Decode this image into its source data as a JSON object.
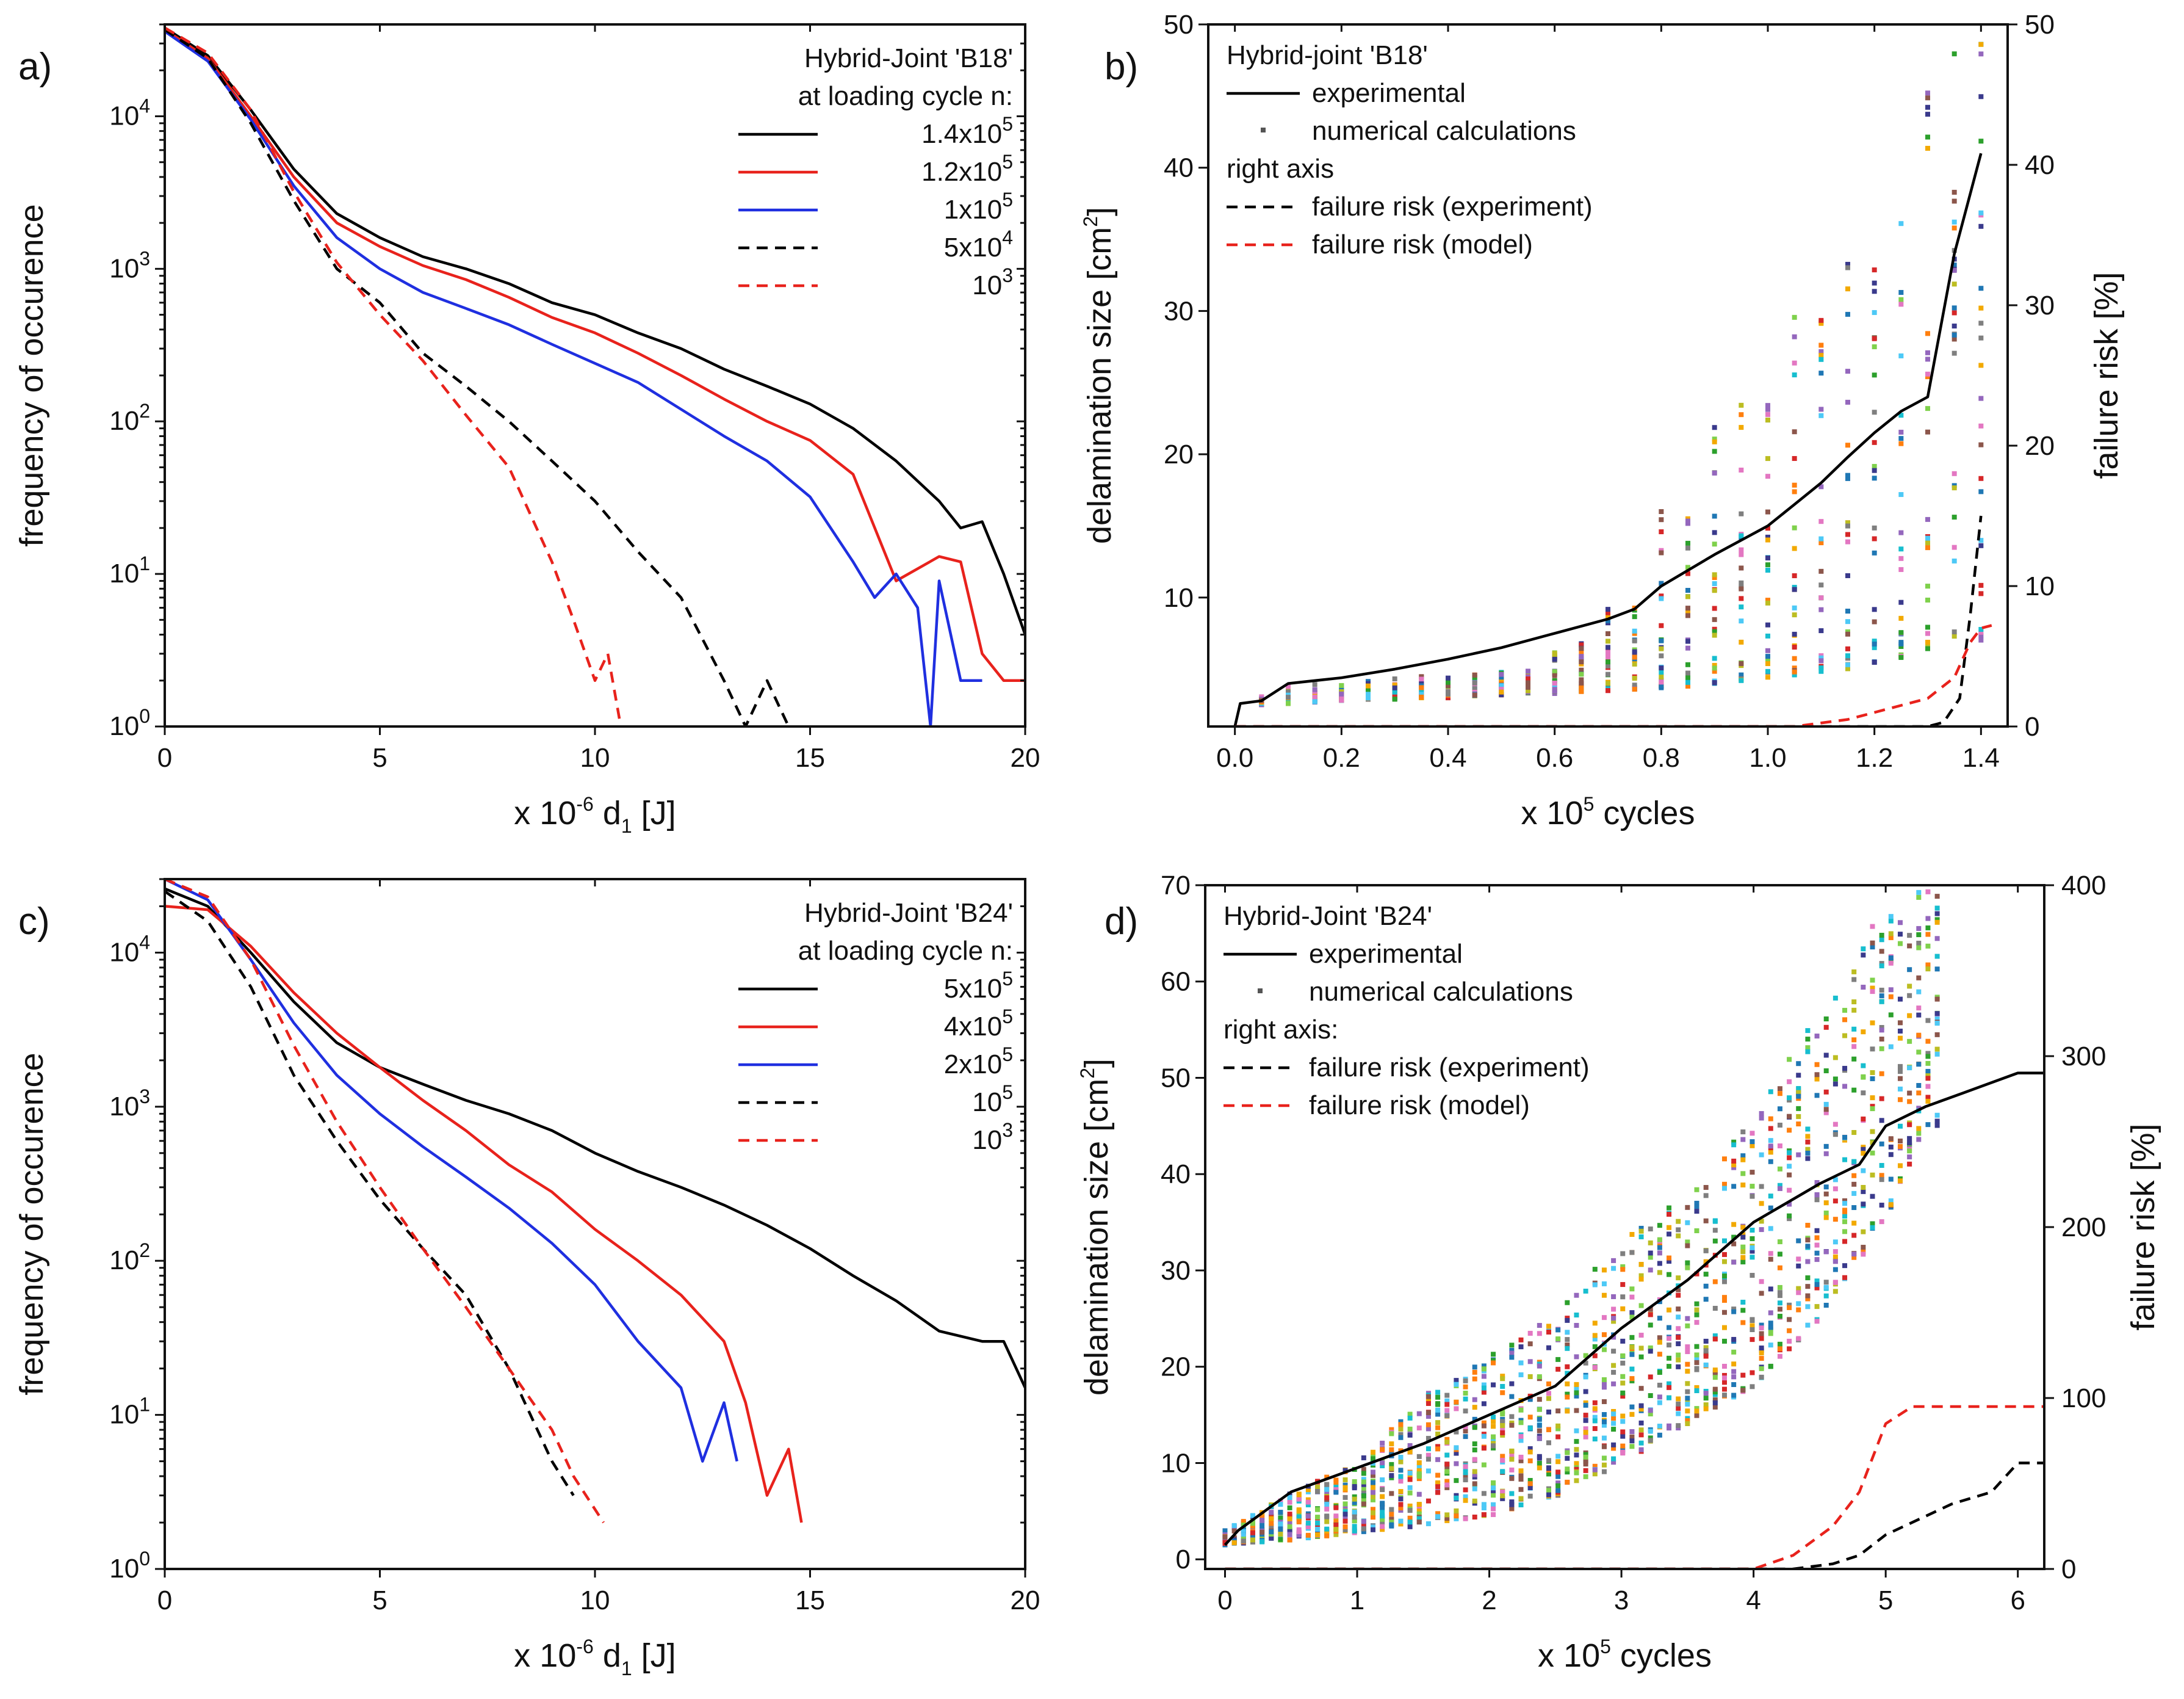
{
  "chart_data": [
    {
      "panel": "a)",
      "type": "line",
      "yscale": "log",
      "xlabel": "x 10-6 d1 [J]",
      "xlabel_parts": {
        "prefix": "x 10",
        "exp": "-6",
        "var": " d",
        "sub": "1",
        "unit": "[J]"
      },
      "ylabel": "frequency of occurence",
      "xlim": [
        0,
        20
      ],
      "ylim": [
        1,
        40000
      ],
      "xticks": [
        "0",
        "5",
        "10",
        "15",
        "20"
      ],
      "yticks": [
        {
          "base": "10",
          "exp": "0"
        },
        {
          "base": "10",
          "exp": "1"
        },
        {
          "base": "10",
          "exp": "2"
        },
        {
          "base": "10",
          "exp": "3"
        },
        {
          "base": "10",
          "exp": "4"
        }
      ],
      "legend_title": [
        "Hybrid-Joint 'B18'",
        "at loading cycle n:"
      ],
      "series": [
        {
          "name": "1.4x10^5",
          "label_base": "1.4x10",
          "label_exp": "5",
          "color": "#000000",
          "dash": "solid",
          "x": [
            0,
            1,
            2,
            3,
            4,
            5,
            6,
            7,
            8,
            9,
            10,
            11,
            12,
            13,
            14,
            15,
            16,
            17,
            18,
            18.5,
            19,
            19.5,
            20
          ],
          "y": [
            38000,
            25000,
            11000,
            4500,
            2300,
            1600,
            1200,
            1000,
            800,
            600,
            500,
            380,
            300,
            220,
            170,
            130,
            90,
            55,
            30,
            20,
            22,
            10,
            4
          ]
        },
        {
          "name": "1.2x10^5",
          "label_base": "1.2x10",
          "label_exp": "5",
          "color": "#e8221c",
          "dash": "solid",
          "x": [
            0,
            1,
            2,
            3,
            4,
            5,
            6,
            7,
            8,
            9,
            10,
            11,
            12,
            13,
            14,
            15,
            16,
            17,
            18,
            18.5,
            19,
            19.5,
            20
          ],
          "y": [
            37000,
            24000,
            10000,
            4000,
            2000,
            1400,
            1050,
            850,
            650,
            480,
            380,
            280,
            200,
            140,
            100,
            75,
            45,
            9,
            13,
            12,
            3,
            2,
            2
          ]
        },
        {
          "name": "1x10^5",
          "label_base": "1x10",
          "label_exp": "5",
          "color": "#1f2fe0",
          "dash": "solid",
          "x": [
            0,
            1,
            2,
            3,
            4,
            5,
            6,
            7,
            8,
            9,
            10,
            11,
            12,
            13,
            14,
            15,
            16,
            16.5,
            17,
            17.5,
            17.8,
            18,
            18.5,
            19
          ],
          "y": [
            36000,
            23000,
            9500,
            3500,
            1600,
            1000,
            700,
            550,
            430,
            320,
            240,
            180,
            120,
            80,
            55,
            32,
            12,
            7,
            10,
            6,
            1,
            9,
            2,
            2
          ]
        },
        {
          "name": "5x10^4",
          "label_base": "5x10",
          "label_exp": "4",
          "color": "#000000",
          "dash": "dashed",
          "x": [
            0,
            1,
            2,
            3,
            4,
            5,
            6,
            7,
            8,
            9,
            10,
            11,
            12,
            13,
            13.5,
            14,
            14.5
          ],
          "y": [
            37000,
            24000,
            9000,
            2800,
            1000,
            600,
            280,
            170,
            100,
            55,
            30,
            14,
            7,
            2,
            1,
            2,
            1
          ]
        },
        {
          "name": "10^3",
          "label_base": "10",
          "label_exp": "3",
          "color": "#e8221c",
          "dash": "dashed",
          "x": [
            0,
            1,
            2,
            3,
            4,
            5,
            6,
            7,
            8,
            9,
            9.5,
            10,
            10.3,
            10.6
          ],
          "y": [
            38000,
            26000,
            11000,
            3200,
            1100,
            500,
            250,
            110,
            50,
            12,
            5,
            2,
            3,
            1
          ]
        }
      ]
    },
    {
      "panel": "b)",
      "type": "line+scatter",
      "xlabel": "x 10^5 cycles",
      "xlabel_parts": {
        "prefix": "x 10",
        "exp": "5",
        "rest": " cycles"
      },
      "ylabel": "delamination size [cm2]",
      "ylabel_parts": {
        "prefix": "delamination size [cm",
        "exp": "2",
        "suffix": "]"
      },
      "y2label": "failure risk [%]",
      "xlim": [
        -0.05,
        1.45
      ],
      "ylim": [
        1,
        50
      ],
      "y2lim": [
        0,
        50
      ],
      "xticks": [
        "0.0",
        "0.2",
        "0.4",
        "0.6",
        "0.8",
        "1.0",
        "1.2",
        "1.4"
      ],
      "yticks": [
        "10",
        "20",
        "30",
        "40",
        "50"
      ],
      "y2ticks": [
        "0",
        "10",
        "20",
        "30",
        "40",
        "50"
      ],
      "legend": [
        "Hybrid-joint 'B18'",
        "experimental",
        "numerical calculations",
        "right axis",
        "failure risk (experiment)",
        "failure risk (model)"
      ],
      "experimental": {
        "x": [
          0,
          0.01,
          0.05,
          0.1,
          0.2,
          0.3,
          0.4,
          0.5,
          0.6,
          0.7,
          0.75,
          0.8,
          0.9,
          1.0,
          1.05,
          1.1,
          1.15,
          1.2,
          1.25,
          1.3,
          1.35,
          1.4
        ],
        "y": [
          1,
          2.6,
          2.8,
          4,
          4.4,
          5.0,
          5.7,
          6.5,
          7.5,
          8.5,
          9.2,
          10.8,
          13,
          15,
          16.5,
          18,
          19.8,
          21.5,
          23,
          24,
          34,
          41
        ]
      },
      "scatter_ranges": {
        "x": [
          0.05,
          0.1,
          0.15,
          0.2,
          0.25,
          0.3,
          0.35,
          0.4,
          0.45,
          0.5,
          0.55,
          0.6,
          0.65,
          0.7,
          0.75,
          0.8,
          0.85,
          0.9,
          0.95,
          1.0,
          1.05,
          1.1,
          1.15,
          1.2,
          1.25,
          1.3,
          1.35,
          1.4
        ],
        "ymin": [
          2.5,
          2.6,
          2.7,
          2.8,
          2.9,
          2.9,
          3.0,
          3.0,
          3.1,
          3.2,
          3.3,
          3.3,
          3.4,
          3.5,
          3.6,
          3.7,
          3.8,
          4.0,
          4.2,
          4.4,
          4.6,
          4.8,
          5.0,
          5.4,
          5.8,
          6.0,
          6.5,
          7.0
        ],
        "ymax": [
          3.1,
          3.8,
          4.0,
          4.0,
          4.2,
          4.4,
          4.5,
          4.6,
          4.7,
          4.9,
          5.2,
          6.2,
          7.2,
          9.5,
          10.5,
          16.5,
          17.0,
          22,
          25,
          26,
          31,
          31,
          36,
          37,
          40,
          46,
          48,
          49
        ]
      },
      "risk_experiment": {
        "x": [
          0,
          1.3,
          1.33,
          1.36,
          1.38,
          1.4
        ],
        "y": [
          0,
          0,
          0.3,
          2,
          8,
          15
        ]
      },
      "risk_model": {
        "x": [
          0,
          1.05,
          1.15,
          1.2,
          1.25,
          1.3,
          1.35,
          1.38,
          1.4,
          1.42
        ],
        "y": [
          0,
          0,
          0.5,
          1,
          1.5,
          2,
          3.5,
          6,
          7,
          7.2
        ]
      }
    },
    {
      "panel": "c)",
      "type": "line",
      "yscale": "log",
      "xlabel": "x 10-6 d1 [J]",
      "xlabel_parts": {
        "prefix": "x 10",
        "exp": "-6",
        "var": " d",
        "sub": "1",
        "unit": "[J]"
      },
      "ylabel": "frequency of occurence",
      "xlim": [
        0,
        20
      ],
      "ylim": [
        1,
        30000
      ],
      "xticks": [
        "0",
        "5",
        "10",
        "15",
        "20"
      ],
      "yticks": [
        {
          "base": "10",
          "exp": "0"
        },
        {
          "base": "10",
          "exp": "1"
        },
        {
          "base": "10",
          "exp": "2"
        },
        {
          "base": "10",
          "exp": "3"
        },
        {
          "base": "10",
          "exp": "4"
        }
      ],
      "legend_title": [
        "Hybrid-Joint 'B24'",
        "at loading cycle n:"
      ],
      "series": [
        {
          "name": "5x10^5",
          "label_base": "5x10",
          "label_exp": "5",
          "color": "#000000",
          "dash": "solid",
          "x": [
            0,
            1,
            2,
            3,
            4,
            5,
            6,
            7,
            8,
            9,
            10,
            11,
            12,
            13,
            14,
            15,
            16,
            17,
            18,
            19,
            19.5,
            20
          ],
          "y": [
            26000,
            20000,
            10000,
            4800,
            2600,
            1800,
            1400,
            1100,
            900,
            700,
            500,
            380,
            300,
            230,
            170,
            120,
            80,
            55,
            35,
            30,
            30,
            15
          ]
        },
        {
          "name": "4x10^5",
          "label_base": "4x10",
          "label_exp": "5",
          "color": "#e8221c",
          "dash": "solid",
          "x": [
            0,
            1,
            2,
            3,
            4,
            5,
            6,
            7,
            8,
            9,
            10,
            11,
            12,
            13,
            13.5,
            14,
            14.5,
            14.8
          ],
          "y": [
            20000,
            19000,
            11000,
            5500,
            3000,
            1800,
            1100,
            700,
            420,
            280,
            160,
            100,
            60,
            30,
            12,
            3,
            6,
            2
          ]
        },
        {
          "name": "2x10^5",
          "label_base": "2x10",
          "label_exp": "5",
          "color": "#1f2fe0",
          "dash": "solid",
          "x": [
            0,
            1,
            2,
            3,
            4,
            5,
            6,
            7,
            8,
            9,
            10,
            11,
            12,
            12.5,
            13,
            13.3
          ],
          "y": [
            30000,
            22000,
            9000,
            3500,
            1600,
            900,
            550,
            350,
            220,
            130,
            70,
            30,
            15,
            5,
            12,
            5
          ]
        },
        {
          "name": "10^5",
          "label_base": "10",
          "label_exp": "5",
          "color": "#000000",
          "dash": "dashed",
          "x": [
            0,
            1,
            2,
            3,
            4,
            5,
            6,
            7,
            8,
            8.5,
            9,
            9.5
          ],
          "y": [
            25000,
            16000,
            6000,
            1600,
            600,
            250,
            120,
            60,
            20,
            10,
            5,
            3
          ]
        },
        {
          "name": "10^3",
          "label_base": "10",
          "label_exp": "3",
          "color": "#e8221c",
          "dash": "dashed",
          "x": [
            0,
            1,
            2,
            3,
            4,
            5,
            6,
            7,
            8,
            9,
            9.5,
            10.2
          ],
          "y": [
            30000,
            23000,
            9000,
            2500,
            800,
            300,
            120,
            50,
            20,
            8,
            4,
            2
          ]
        }
      ]
    },
    {
      "panel": "d)",
      "type": "line+scatter",
      "xlabel": "x 10^5 cycles",
      "xlabel_parts": {
        "prefix": "x 10",
        "exp": "5",
        "rest": " cycles"
      },
      "ylabel": "delamination size [cm2]",
      "ylabel_parts": {
        "prefix": "delamination size [cm",
        "exp": "2",
        "suffix": "]"
      },
      "y2label": "failure risk [%]",
      "xlim": [
        -0.15,
        6.2
      ],
      "ylim": [
        -1,
        70
      ],
      "y2lim": [
        0,
        400
      ],
      "xticks": [
        "0",
        "1",
        "2",
        "3",
        "4",
        "5",
        "6"
      ],
      "yticks": [
        "0",
        "10",
        "20",
        "30",
        "40",
        "50",
        "60",
        "70"
      ],
      "y2ticks": [
        "0",
        "100",
        "200",
        "300",
        "400"
      ],
      "legend": [
        "Hybrid-Joint 'B24'",
        "experimental",
        "numerical calculations",
        "right axis:",
        "failure risk (experiment)",
        "failure risk (model)"
      ],
      "experimental": {
        "x": [
          0,
          0.1,
          0.5,
          1.0,
          1.5,
          2.0,
          2.5,
          3.0,
          3.5,
          4.0,
          4.5,
          4.8,
          5.0,
          5.3,
          5.6,
          6.0,
          6.2
        ],
        "y": [
          1.5,
          3,
          7,
          9.5,
          12,
          15,
          18,
          24,
          29,
          35,
          39,
          41,
          45,
          47,
          48.5,
          50.5,
          50.5
        ]
      },
      "scatter_ranges": {
        "x": [
          0,
          0.5,
          1.0,
          1.5,
          2.0,
          2.5,
          3.0,
          3.5,
          4.0,
          4.5,
          5.0,
          5.3
        ],
        "ymin": [
          1.5,
          2.0,
          2.8,
          3.5,
          4.5,
          6.5,
          10,
          14,
          18,
          25,
          35,
          45
        ],
        "ymax": [
          3,
          7,
          10,
          17,
          21,
          26,
          33,
          38,
          46,
          57,
          68,
          70
        ]
      },
      "risk_experiment": {
        "x": [
          0,
          4.3,
          4.6,
          4.8,
          5.0,
          5.5,
          5.8,
          6.0,
          6.2
        ],
        "y": [
          0,
          0,
          3,
          8,
          20,
          38,
          45,
          62,
          62
        ]
      },
      "risk_model": {
        "x": [
          0,
          4.0,
          4.3,
          4.6,
          4.8,
          5.0,
          5.2,
          6.0,
          6.2
        ],
        "y": [
          0,
          0,
          8,
          25,
          45,
          85,
          95,
          95,
          95
        ]
      }
    }
  ]
}
